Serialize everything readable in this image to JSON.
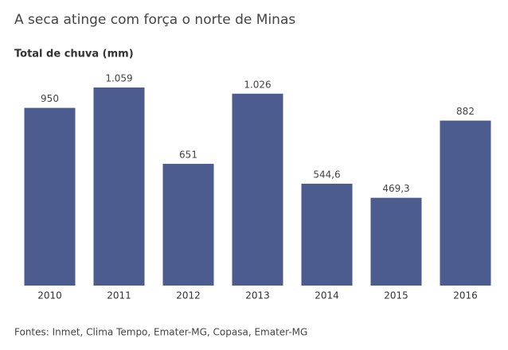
{
  "chart_data": {
    "type": "bar",
    "title": "A seca atinge com força o norte de Minas",
    "subtitle": "Total de chuva (mm)",
    "categories": [
      "2010",
      "2011",
      "2012",
      "2013",
      "2014",
      "2015",
      "2016"
    ],
    "values": [
      950,
      1059,
      651,
      1026,
      544.6,
      469.3,
      882
    ],
    "value_labels": [
      "950",
      "1.059",
      "651",
      "1.026",
      "544,6",
      "469,3",
      "882"
    ],
    "color": "#4c5c8f",
    "source": "Fontes: Inmet, Clima Tempo, Emater-MG, Copasa, Emater-MG"
  }
}
